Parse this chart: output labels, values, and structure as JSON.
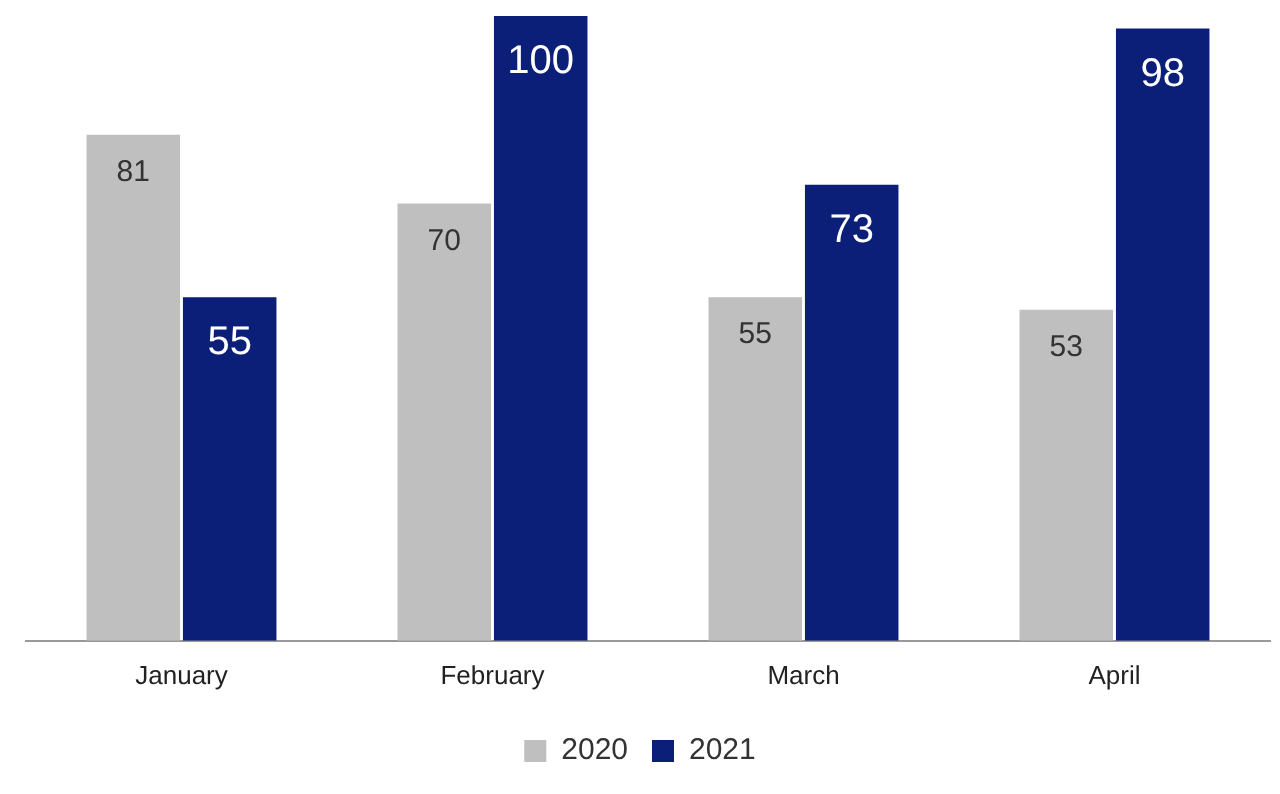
{
  "chart_data": {
    "type": "bar",
    "categories": [
      "January",
      "February",
      "March",
      "April"
    ],
    "series": [
      {
        "name": "2020",
        "color": "#bfbfbf",
        "values": [
          81,
          70,
          55,
          53
        ]
      },
      {
        "name": "2021",
        "color": "#0c1f78",
        "values": [
          55,
          100,
          73,
          98
        ]
      }
    ],
    "data_labels": true,
    "legend": "bottom",
    "grid": false,
    "relative": false
  }
}
